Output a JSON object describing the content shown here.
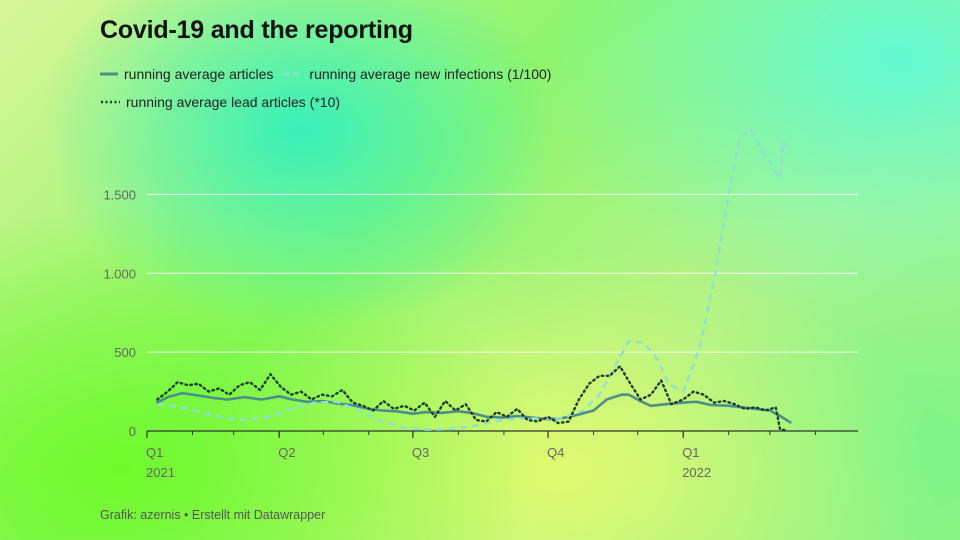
{
  "title": "Covid-19 and the reporting",
  "footer": "Grafik: azernis • Erstellt mit Datawrapper",
  "colors": {
    "articles": "#4a8f8a",
    "infections": "#8fe0d2",
    "lead": "#1e3d2e",
    "gridline": "#ffffff",
    "axis": "#333333"
  },
  "chart_data": {
    "type": "line",
    "title": "Covid-19 and the reporting",
    "xlabel": "",
    "ylabel": "",
    "xlim": [
      "2021-01-01",
      "2022-04-30"
    ],
    "ylim": [
      0,
      1750
    ],
    "yticks": [
      0,
      500,
      1000,
      1500
    ],
    "ytick_labels": [
      "0",
      "500",
      "1.000",
      "1.500"
    ],
    "xticks": [
      {
        "date": "2021-01-01",
        "label": "Q1",
        "sublabel": "2021"
      },
      {
        "date": "2021-04-01",
        "label": "Q2",
        "sublabel": ""
      },
      {
        "date": "2021-07-01",
        "label": "Q3",
        "sublabel": ""
      },
      {
        "date": "2021-10-01",
        "label": "Q4",
        "sublabel": ""
      },
      {
        "date": "2022-01-01",
        "label": "Q1",
        "sublabel": "2022"
      }
    ],
    "grid": true,
    "legend_position": "top-left",
    "series": [
      {
        "name": "running average articles",
        "key": "articles",
        "style": "solid",
        "points": [
          [
            "2021-01-08",
            180
          ],
          [
            "2021-01-15",
            215
          ],
          [
            "2021-01-25",
            240
          ],
          [
            "2021-02-05",
            225
          ],
          [
            "2021-02-15",
            210
          ],
          [
            "2021-02-25",
            200
          ],
          [
            "2021-03-08",
            215
          ],
          [
            "2021-03-20",
            200
          ],
          [
            "2021-04-01",
            220
          ],
          [
            "2021-04-10",
            200
          ],
          [
            "2021-04-20",
            185
          ],
          [
            "2021-05-01",
            190
          ],
          [
            "2021-05-10",
            175
          ],
          [
            "2021-05-20",
            165
          ],
          [
            "2021-06-01",
            140
          ],
          [
            "2021-06-10",
            130
          ],
          [
            "2021-06-20",
            125
          ],
          [
            "2021-07-01",
            110
          ],
          [
            "2021-07-10",
            120
          ],
          [
            "2021-07-20",
            115
          ],
          [
            "2021-08-01",
            125
          ],
          [
            "2021-08-10",
            115
          ],
          [
            "2021-08-20",
            90
          ],
          [
            "2021-09-01",
            85
          ],
          [
            "2021-09-10",
            95
          ],
          [
            "2021-09-20",
            85
          ],
          [
            "2021-10-01",
            75
          ],
          [
            "2021-10-10",
            80
          ],
          [
            "2021-10-20",
            100
          ],
          [
            "2021-11-01",
            130
          ],
          [
            "2021-11-10",
            200
          ],
          [
            "2021-11-20",
            230
          ],
          [
            "2021-11-25",
            230
          ],
          [
            "2021-12-05",
            180
          ],
          [
            "2021-12-10",
            160
          ],
          [
            "2021-12-20",
            170
          ],
          [
            "2022-01-01",
            180
          ],
          [
            "2022-01-10",
            185
          ],
          [
            "2022-01-20",
            165
          ],
          [
            "2022-02-01",
            160
          ],
          [
            "2022-02-10",
            150
          ],
          [
            "2022-02-20",
            140
          ],
          [
            "2022-03-01",
            130
          ],
          [
            "2022-03-08",
            95
          ],
          [
            "2022-03-15",
            55
          ]
        ]
      },
      {
        "name": "running average new infections (1/100)",
        "key": "infections",
        "style": "dashed",
        "points": [
          [
            "2021-01-08",
            170
          ],
          [
            "2021-01-25",
            150
          ],
          [
            "2021-02-10",
            110
          ],
          [
            "2021-02-25",
            80
          ],
          [
            "2021-03-10",
            70
          ],
          [
            "2021-03-25",
            90
          ],
          [
            "2021-04-10",
            140
          ],
          [
            "2021-04-25",
            180
          ],
          [
            "2021-05-10",
            185
          ],
          [
            "2021-05-25",
            130
          ],
          [
            "2021-06-10",
            60
          ],
          [
            "2021-06-25",
            20
          ],
          [
            "2021-07-10",
            8
          ],
          [
            "2021-07-25",
            10
          ],
          [
            "2021-08-10",
            30
          ],
          [
            "2021-08-25",
            60
          ],
          [
            "2021-09-10",
            80
          ],
          [
            "2021-09-25",
            80
          ],
          [
            "2021-10-10",
            80
          ],
          [
            "2021-10-25",
            130
          ],
          [
            "2021-11-05",
            230
          ],
          [
            "2021-11-15",
            400
          ],
          [
            "2021-11-25",
            570
          ],
          [
            "2021-12-05",
            560
          ],
          [
            "2021-12-15",
            450
          ],
          [
            "2021-12-22",
            300
          ],
          [
            "2022-01-01",
            250
          ],
          [
            "2022-01-12",
            520
          ],
          [
            "2022-01-22",
            950
          ],
          [
            "2022-02-01",
            1500
          ],
          [
            "2022-02-08",
            1830
          ],
          [
            "2022-02-15",
            1920
          ],
          [
            "2022-02-25",
            1760
          ],
          [
            "2022-03-08",
            1600
          ],
          [
            "2022-03-10",
            1840
          ],
          [
            "2022-03-12",
            1800
          ]
        ]
      },
      {
        "name": "running average lead articles (*10)",
        "key": "lead",
        "style": "dotted",
        "points": [
          [
            "2021-01-08",
            200
          ],
          [
            "2021-01-15",
            250
          ],
          [
            "2021-01-22",
            310
          ],
          [
            "2021-01-29",
            290
          ],
          [
            "2021-02-05",
            300
          ],
          [
            "2021-02-12",
            250
          ],
          [
            "2021-02-19",
            270
          ],
          [
            "2021-02-26",
            230
          ],
          [
            "2021-03-05",
            290
          ],
          [
            "2021-03-12",
            310
          ],
          [
            "2021-03-19",
            260
          ],
          [
            "2021-03-26",
            360
          ],
          [
            "2021-04-02",
            280
          ],
          [
            "2021-04-09",
            230
          ],
          [
            "2021-04-16",
            250
          ],
          [
            "2021-04-23",
            200
          ],
          [
            "2021-04-30",
            230
          ],
          [
            "2021-05-07",
            220
          ],
          [
            "2021-05-14",
            260
          ],
          [
            "2021-05-21",
            180
          ],
          [
            "2021-05-28",
            160
          ],
          [
            "2021-06-04",
            130
          ],
          [
            "2021-06-11",
            190
          ],
          [
            "2021-06-18",
            140
          ],
          [
            "2021-06-25",
            160
          ],
          [
            "2021-07-02",
            130
          ],
          [
            "2021-07-09",
            180
          ],
          [
            "2021-07-16",
            90
          ],
          [
            "2021-07-23",
            190
          ],
          [
            "2021-07-30",
            130
          ],
          [
            "2021-08-06",
            170
          ],
          [
            "2021-08-13",
            70
          ],
          [
            "2021-08-20",
            60
          ],
          [
            "2021-08-27",
            120
          ],
          [
            "2021-09-03",
            90
          ],
          [
            "2021-09-10",
            140
          ],
          [
            "2021-09-17",
            70
          ],
          [
            "2021-09-24",
            60
          ],
          [
            "2021-10-01",
            90
          ],
          [
            "2021-10-08",
            50
          ],
          [
            "2021-10-15",
            60
          ],
          [
            "2021-10-22",
            200
          ],
          [
            "2021-10-29",
            300
          ],
          [
            "2021-11-05",
            350
          ],
          [
            "2021-11-12",
            350
          ],
          [
            "2021-11-19",
            410
          ],
          [
            "2021-11-26",
            300
          ],
          [
            "2021-12-03",
            200
          ],
          [
            "2021-12-10",
            230
          ],
          [
            "2021-12-17",
            320
          ],
          [
            "2021-12-24",
            170
          ],
          [
            "2022-01-01",
            200
          ],
          [
            "2022-01-08",
            250
          ],
          [
            "2022-01-15",
            230
          ],
          [
            "2022-01-22",
            180
          ],
          [
            "2022-01-29",
            190
          ],
          [
            "2022-02-05",
            170
          ],
          [
            "2022-02-12",
            140
          ],
          [
            "2022-02-19",
            150
          ],
          [
            "2022-02-26",
            130
          ],
          [
            "2022-03-05",
            150
          ],
          [
            "2022-03-08",
            10
          ],
          [
            "2022-03-12",
            5
          ]
        ]
      }
    ]
  }
}
